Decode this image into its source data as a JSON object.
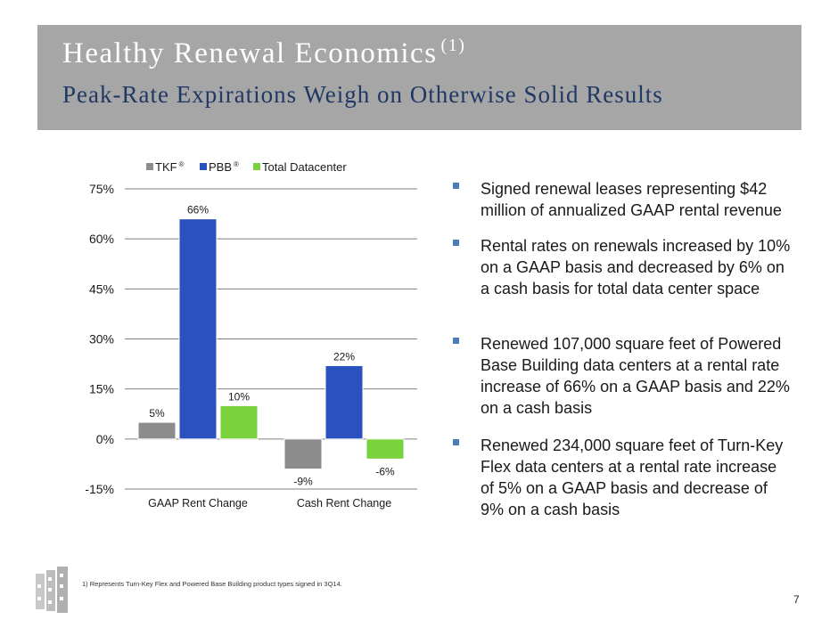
{
  "header": {
    "title": "Healthy Renewal  Economics",
    "title_sup": "(1)",
    "subtitle": "Peak-Rate Expirations Weigh on Otherwise Solid Results"
  },
  "chart_data": {
    "type": "bar",
    "categories": [
      "GAAP Rent Change",
      "Cash Rent Change"
    ],
    "series": [
      {
        "name": "TKF",
        "name_sup": "®",
        "color": "#8c8c8c",
        "values": [
          5,
          -9
        ],
        "labels": [
          "5%",
          "-9%"
        ]
      },
      {
        "name": "PBB",
        "name_sup": "®",
        "color": "#2a52be",
        "values": [
          66,
          22
        ],
        "labels": [
          "66%",
          "22%"
        ]
      },
      {
        "name": "Total Datacenter",
        "name_sup": "",
        "color": "#79d13b",
        "values": [
          10,
          -6
        ],
        "labels": [
          "10%",
          "-6%"
        ]
      }
    ],
    "ylim": [
      -15,
      75
    ],
    "yticks": [
      -15,
      0,
      15,
      30,
      45,
      60,
      75
    ],
    "ytick_labels": [
      "-15%",
      "0%",
      "15%",
      "30%",
      "45%",
      "60%",
      "75%"
    ],
    "grid": true,
    "legend": "top"
  },
  "bullets": [
    "Signed renewal leases representing $42 million of annualized GAAP rental revenue",
    "Rental rates on renewals increased by 10% on a GAAP basis and decreased by 6% on a cash basis for total data center space",
    "Renewed 107,000 square feet of Powered Base Building data centers at a rental rate increase of 66% on a GAAP basis and 22% on a cash basis",
    "Renewed 234,000 square feet of Turn-Key Flex data centers at a rental rate increase of 5% on a GAAP basis and decrease of 9% on a cash basis"
  ],
  "footnote": "1)   Represents Turn-Key Flex and Powered Base Building product types signed in 3Q14.",
  "page_number": "7"
}
